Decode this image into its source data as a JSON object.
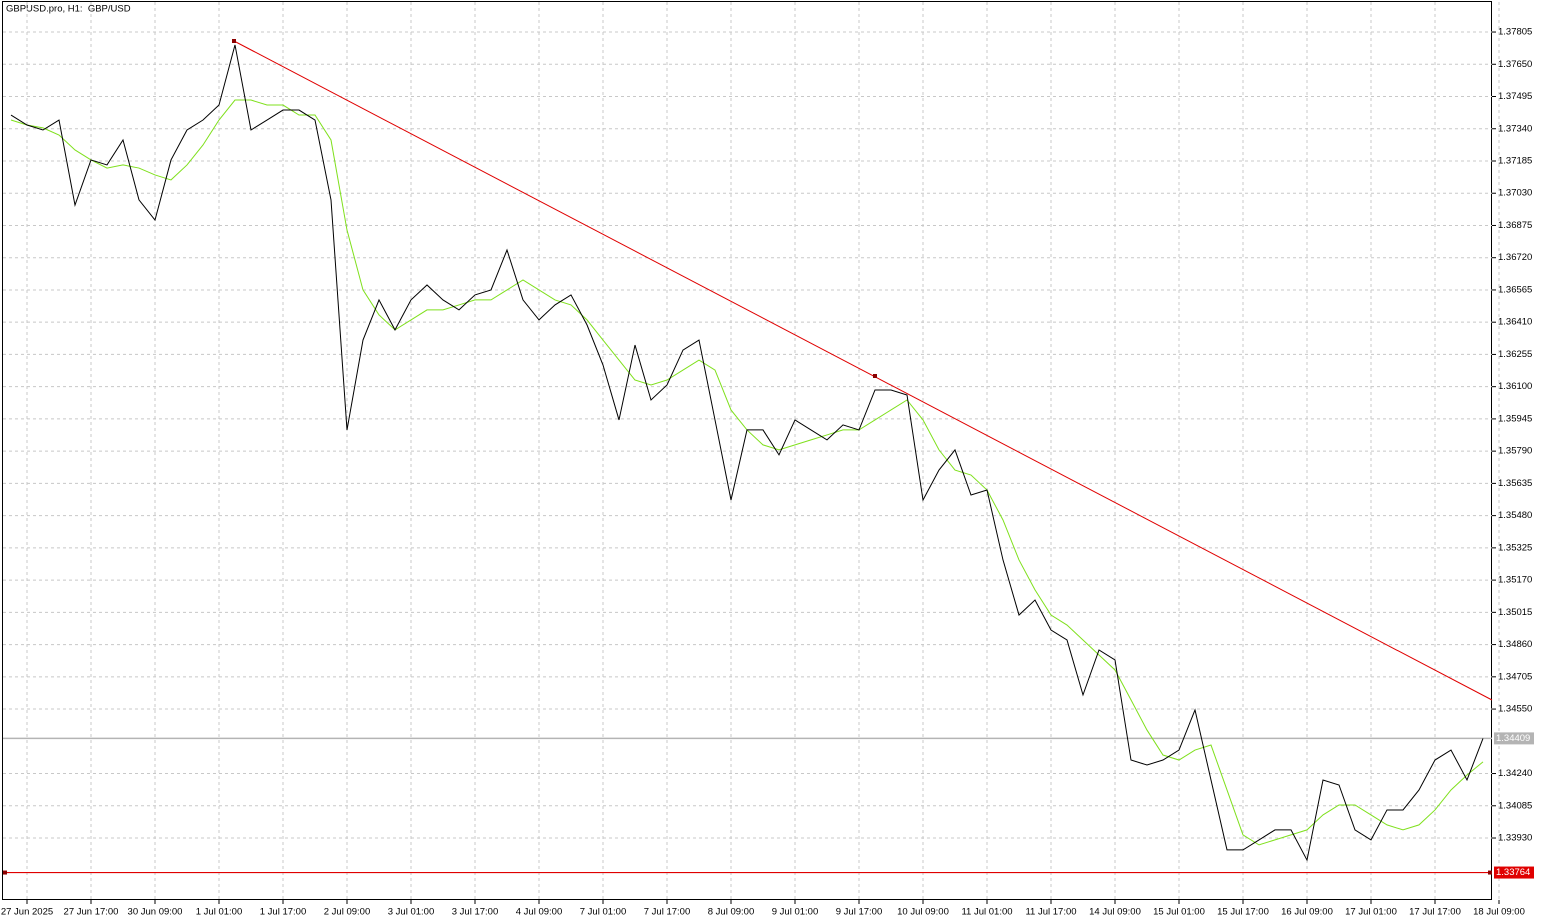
{
  "chart_data": {
    "type": "line",
    "title": "GBPUSD.pro, H1:  GBP/USD",
    "categories": [
      null,
      "27 Jun 2025",
      null,
      null,
      null,
      "27 Jun 17:00",
      null,
      null,
      null,
      "30 Jun 09:00",
      null,
      null,
      null,
      "1 Jul 01:00",
      null,
      null,
      null,
      "1 Jul 17:00",
      null,
      null,
      null,
      "2 Jul 09:00",
      null,
      null,
      null,
      "3 Jul 01:00",
      null,
      null,
      null,
      "3 Jul 17:00",
      null,
      null,
      null,
      "4 Jul 09:00",
      null,
      null,
      null,
      "7 Jul 01:00",
      null,
      null,
      null,
      "7 Jul 17:00",
      null,
      null,
      null,
      "8 Jul 09:00",
      null,
      null,
      null,
      "9 Jul 01:00",
      null,
      null,
      null,
      "9 Jul 17:00",
      null,
      null,
      null,
      "10 Jul 09:00",
      null,
      null,
      null,
      "11 Jul 01:00",
      null,
      null,
      null,
      "11 Jul 17:00",
      null,
      null,
      null,
      "14 Jul 09:00",
      null,
      null,
      null,
      "15 Jul 01:00",
      null,
      null,
      null,
      "15 Jul 17:00",
      null,
      null,
      null,
      "16 Jul 09:00",
      null,
      null,
      null,
      "17 Jul 01:00",
      null,
      null,
      null,
      "17 Jul 17:00",
      null,
      null,
      null,
      "18 Jul 09:00"
    ],
    "series": [
      {
        "color": "#000000",
        "values": [
          1.37406,
          1.37358,
          1.37334,
          1.37382,
          1.36973,
          1.3719,
          1.37166,
          1.37286,
          1.36998,
          1.36901,
          1.3719,
          1.37334,
          1.37382,
          1.37454,
          1.37743,
          1.37334,
          1.37382,
          1.3743,
          1.3743,
          1.37382,
          1.36998,
          1.35892,
          1.36324,
          1.36517,
          1.36373,
          1.36517,
          1.36589,
          1.36517,
          1.36469,
          1.36541,
          1.36565,
          1.36757,
          1.36517,
          1.36421,
          1.36493,
          1.36541,
          1.36397,
          1.36204,
          1.3594,
          1.363,
          1.36036,
          1.36108,
          1.36276,
          1.36324,
          1.3594,
          1.35555,
          1.35892,
          1.35892,
          1.35772,
          1.3594,
          1.35892,
          1.35844,
          1.35916,
          1.35892,
          1.36084,
          1.36084,
          1.3606,
          1.35555,
          1.35699,
          1.35796,
          1.35579,
          1.35603,
          1.35267,
          1.35002,
          1.35074,
          1.3493,
          1.34882,
          1.34618,
          1.34834,
          1.34786,
          1.34305,
          1.34281,
          1.34305,
          1.34353,
          1.34546,
          1.34209,
          1.33873,
          1.33873,
          1.33921,
          1.33969,
          1.33969,
          1.33824,
          1.34209,
          1.34185,
          1.33969,
          1.33921,
          1.34065,
          1.34065,
          1.34161,
          1.34305,
          1.34353,
          1.34209,
          1.34409,
          null
        ]
      },
      {
        "color": "#7fe01c",
        "values": [
          1.37382,
          1.37358,
          1.37344,
          1.3731,
          1.37238,
          1.3719,
          1.37151,
          1.37166,
          1.37151,
          1.37118,
          1.37094,
          1.37166,
          1.37262,
          1.37382,
          1.37478,
          1.37478,
          1.37454,
          1.37454,
          1.37406,
          1.37406,
          1.37286,
          1.36853,
          1.36565,
          1.36445,
          1.36373,
          1.36421,
          1.36469,
          1.36469,
          1.36493,
          1.36517,
          1.36517,
          1.36565,
          1.36613,
          1.36565,
          1.36517,
          1.36493,
          1.36421,
          1.36324,
          1.36228,
          1.36132,
          1.36108,
          1.36132,
          1.3618,
          1.36228,
          1.3618,
          1.35988,
          1.35892,
          1.3582,
          1.35796,
          1.3582,
          1.35844,
          1.35868,
          1.35892,
          1.35892,
          1.3594,
          1.35988,
          1.36036,
          1.3594,
          1.35796,
          1.35699,
          1.35675,
          1.35603,
          1.35459,
          1.35267,
          1.35123,
          1.35002,
          1.34954,
          1.34882,
          1.3481,
          1.34738,
          1.34594,
          1.34449,
          1.34329,
          1.34305,
          1.34353,
          1.34377,
          1.34161,
          1.33945,
          1.33897,
          1.33921,
          1.33945,
          1.33969,
          1.34041,
          1.34089,
          1.34089,
          1.34041,
          1.33993,
          1.33969,
          1.33993,
          1.34065,
          1.34161,
          1.34233,
          1.34296,
          null
        ]
      }
    ],
    "hline": {
      "value": 1.33764,
      "color": "#e00000"
    },
    "ylim": [
      1.33632,
      1.37959
    ],
    "yticks": [
      1.37805,
      {
        "value": 1.3765,
        "label": "1.37650"
      },
      1.37495,
      {
        "value": 1.3734,
        "label": "1.37340"
      },
      1.37185,
      {
        "value": 1.3703,
        "label": "1.37030"
      },
      1.36875,
      {
        "value": 1.3672,
        "label": "1.36720"
      },
      1.36565,
      {
        "value": 1.3641,
        "label": "1.36410"
      },
      1.36255,
      {
        "value": 1.361,
        "label": "1.36100"
      },
      1.35945,
      {
        "value": 1.3579,
        "label": "1.35790"
      },
      1.35635,
      {
        "value": 1.3548,
        "label": "1.35480"
      },
      1.35325,
      {
        "value": 1.3517,
        "label": "1.35170"
      },
      1.35015,
      {
        "value": 1.3486,
        "label": "1.34860"
      },
      1.34705,
      {
        "value": 1.3455,
        "label": "1.34550"
      },
      {
        "value": 1.3424,
        "label": "1.34240"
      },
      1.34085,
      {
        "value": 1.3393,
        "label": "1.33930"
      }
    ],
    "grid": true
  }
}
